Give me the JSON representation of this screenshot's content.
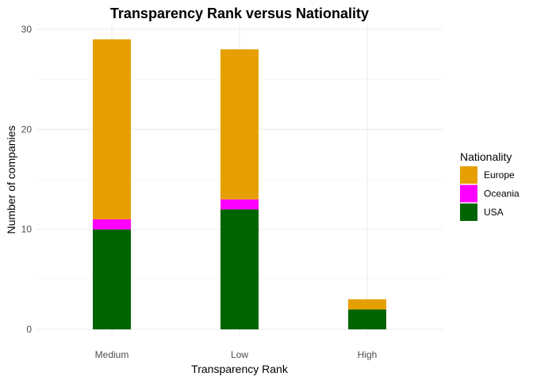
{
  "chart_data": {
    "type": "bar",
    "stacked": true,
    "title": "Transparency Rank versus Nationality",
    "xlabel": "Transparency Rank",
    "ylabel": "Number of companies",
    "categories": [
      "Medium",
      "Low",
      "High"
    ],
    "ylim": [
      0,
      30
    ],
    "yticks": [
      0,
      10,
      20,
      30
    ],
    "grid": true,
    "legend": {
      "title": "Nationality",
      "position": "right"
    },
    "series": [
      {
        "name": "USA",
        "color": "#006400",
        "values": [
          10,
          12,
          2
        ]
      },
      {
        "name": "Oceania",
        "color": "#FF00FF",
        "values": [
          1,
          1,
          0
        ]
      },
      {
        "name": "Europe",
        "color": "#E69F00",
        "values": [
          18,
          15,
          1
        ]
      }
    ],
    "legend_order": [
      "Europe",
      "Oceania",
      "USA"
    ]
  }
}
